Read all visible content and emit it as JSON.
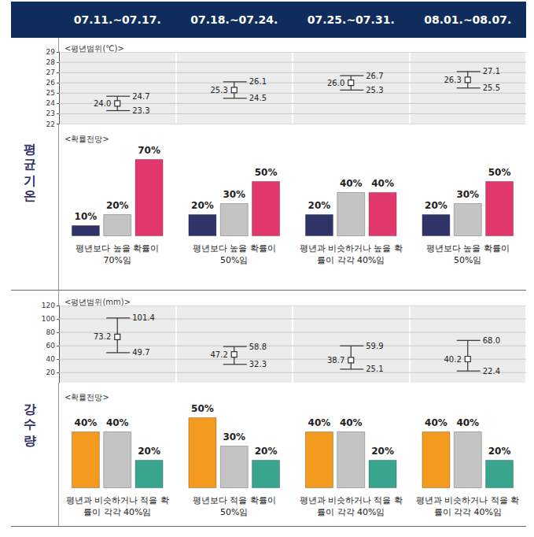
{
  "chart_data": [
    {
      "type": "errorbar",
      "section": "평균기온",
      "title": "<평년범위(℃)>",
      "categories": [
        "07.11.~07.17.",
        "07.18.~07.24.",
        "07.25.~07.31.",
        "08.01.~08.07."
      ],
      "values": [
        24.0,
        25.3,
        26.0,
        26.3
      ],
      "value_labels": [
        "24.0",
        "25.3",
        "26.0",
        "26.3"
      ],
      "upper": [
        24.7,
        26.1,
        26.7,
        27.1
      ],
      "lower": [
        23.3,
        24.5,
        25.3,
        25.5
      ],
      "ylim": [
        22,
        29
      ],
      "yticks": [
        22,
        23,
        24,
        25,
        26,
        27,
        28,
        29
      ],
      "grid": true,
      "tick_labels": "y",
      "color": "#333333"
    },
    {
      "type": "bar",
      "title": "<확률전망>",
      "categories": [
        "07.11.~07.17.",
        "07.18.~07.24.",
        "07.25.~07.31.",
        "08.01.~08.07."
      ],
      "series": [
        {
          "color": "#2f3368",
          "values": [
            10,
            20,
            20,
            20
          ],
          "value_labels": [
            "10%",
            "20%",
            "20%",
            "20%"
          ]
        },
        {
          "color": "#c4c4c4",
          "values": [
            20,
            30,
            40,
            30
          ],
          "value_labels": [
            "20%",
            "30%",
            "40%",
            "30%"
          ]
        },
        {
          "color": "#e2376c",
          "values": [
            70,
            50,
            40,
            50
          ],
          "value_labels": [
            "70%",
            "50%",
            "40%",
            "50%"
          ]
        }
      ],
      "annotations": [
        "평년보다 높을 확률이 70%임",
        "평년보다 높을 확률이 50%임",
        "평년과 비슷하거나 높을 확률이 각각 40%임",
        "평년보다 높을 확률이 50%임"
      ],
      "data_labels": true,
      "tick_labels": false
    },
    {
      "type": "errorbar",
      "section": "강수량",
      "title": "<평년범위(mm)>",
      "categories": [
        "07.11.~07.17.",
        "07.18.~07.24.",
        "07.25.~07.31.",
        "08.01.~08.07."
      ],
      "values": [
        73.2,
        47.2,
        38.7,
        40.2
      ],
      "upper": [
        101.4,
        58.8,
        59.9,
        68.0
      ],
      "upper_labels": [
        "101.4",
        "58.8",
        "59.9",
        "68.0"
      ],
      "lower": [
        49.7,
        32.3,
        25.1,
        22.4
      ],
      "ylim": [
        5,
        120
      ],
      "yticks": [
        20,
        40,
        60,
        80,
        100,
        120
      ],
      "grid": true,
      "tick_labels": "y",
      "color": "#333333"
    },
    {
      "type": "bar",
      "title": "<확률전망>",
      "categories": [
        "07.11.~07.17.",
        "07.18.~07.24.",
        "07.25.~07.31.",
        "08.01.~08.07."
      ],
      "series": [
        {
          "color": "#f39a1f",
          "values": [
            40,
            50,
            40,
            40
          ],
          "value_labels": [
            "40%",
            "50%",
            "40%",
            "40%"
          ]
        },
        {
          "color": "#c4c4c4",
          "values": [
            40,
            30,
            40,
            40
          ],
          "value_labels": [
            "40%",
            "30%",
            "40%",
            "40%"
          ]
        },
        {
          "color": "#3aa58f",
          "values": [
            20,
            20,
            20,
            20
          ],
          "value_labels": [
            "20%",
            "20%",
            "20%",
            "20%"
          ]
        }
      ],
      "annotations": [
        "평년과 비슷하거나 적을 확률이 각각 40%임",
        "평년보다 적을 확률이 50%임",
        "평년과 비슷하거나 적을 확률이 각각 40%임",
        "평년과 비슷하거나 적을 확률이 각각 40%임"
      ],
      "data_labels": true,
      "tick_labels": false
    }
  ]
}
